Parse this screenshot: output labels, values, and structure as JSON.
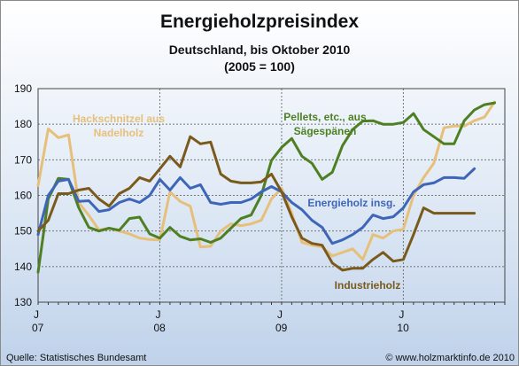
{
  "chart_data": {
    "type": "line",
    "title": "Energieholzpreisindex",
    "subtitle": "Deutschland, bis Oktober 2010",
    "subtitle2": "(2005 = 100)",
    "source_left": "Quelle:  Statistisches Bundesamt",
    "source_right": "© www.holzmarktinfo.de 2010",
    "ylim": [
      130,
      190
    ],
    "yticks": [
      130,
      140,
      150,
      160,
      170,
      180,
      190
    ],
    "xlim": [
      0,
      46
    ],
    "xticks": [
      {
        "x": 0,
        "month": "J",
        "year": "07"
      },
      {
        "x": 12,
        "month": "J",
        "year": "08"
      },
      {
        "x": 24,
        "month": "J",
        "year": "09"
      },
      {
        "x": 36,
        "month": "J",
        "year": "10"
      }
    ],
    "grid": true,
    "colors": {
      "hack": "#e6c07a",
      "pellets": "#4e7f23",
      "energie": "#3e66b8",
      "industrie": "#7a5a1c",
      "grid": "#777777",
      "frame_border": "#8a8a8a"
    },
    "series": [
      {
        "key": "hack",
        "name": "Hackschnitzel aus Nadelholz",
        "label_lines": [
          "Hackschnitzel aus",
          "Nadelholz"
        ],
        "x": [
          0,
          1,
          2,
          3,
          4,
          5,
          6,
          7,
          8,
          9,
          10,
          11,
          12,
          13,
          14,
          15,
          16,
          17,
          18,
          19,
          20,
          21,
          22,
          23,
          24,
          25,
          26,
          27,
          28,
          29,
          30,
          31,
          32,
          33,
          34,
          35,
          36,
          37,
          38,
          39,
          40,
          41,
          42,
          43,
          44,
          45
        ],
        "values": [
          162.8,
          178.7,
          176.2,
          177.0,
          158.0,
          154.4,
          150.3,
          150.8,
          150.0,
          149.2,
          148.0,
          147.6,
          147.5,
          161.0,
          158.3,
          157.0,
          145.5,
          145.7,
          150.0,
          152.0,
          151.5,
          152.0,
          153.0,
          159.0,
          162.0,
          155.0,
          146.8,
          146.0,
          145.5,
          143.0,
          144.0,
          145.0,
          142.0,
          149.0,
          148.0,
          150.0,
          150.5,
          160.0,
          165.0,
          169.0,
          179.0,
          179.5,
          179.5,
          181.0,
          182.0,
          186.3
        ]
      },
      {
        "key": "pellets",
        "name": "Pellets, etc., aus Sägespänen",
        "label_lines": [
          "Pellets, etc., aus",
          "Sägespänen"
        ],
        "x": [
          0,
          1,
          2,
          3,
          4,
          5,
          6,
          7,
          8,
          9,
          10,
          11,
          12,
          13,
          14,
          15,
          16,
          17,
          18,
          19,
          20,
          21,
          22,
          23,
          24,
          25,
          26,
          27,
          28,
          29,
          30,
          31,
          32,
          33,
          34,
          35,
          36,
          37,
          38,
          39,
          40,
          41,
          42,
          43,
          44,
          45
        ],
        "values": [
          138.4,
          159.0,
          164.8,
          164.5,
          156.6,
          151.0,
          150.0,
          150.8,
          150.2,
          153.5,
          153.9,
          149.2,
          148.0,
          151.0,
          148.5,
          147.5,
          147.8,
          146.8,
          148.0,
          150.8,
          153.5,
          154.5,
          160.0,
          169.8,
          173.5,
          176.0,
          171.0,
          169.0,
          164.5,
          166.5,
          174.0,
          178.5,
          180.9,
          181.0,
          180.0,
          180.0,
          180.5,
          183.0,
          178.5,
          176.5,
          174.5,
          174.5,
          181.0,
          184.0,
          185.5,
          186.0
        ]
      },
      {
        "key": "energie",
        "name": "Energieholz insg.",
        "label_lines": [
          "Energieholz insg."
        ],
        "x": [
          0,
          1,
          2,
          3,
          4,
          5,
          6,
          7,
          8,
          9,
          10,
          11,
          12,
          13,
          14,
          15,
          16,
          17,
          18,
          19,
          20,
          21,
          22,
          23,
          24,
          25,
          26,
          27,
          28,
          29,
          30,
          31,
          32,
          33,
          34,
          35,
          36,
          37,
          38,
          39,
          40,
          41,
          42,
          43
        ],
        "values": [
          149.0,
          160.0,
          164.0,
          164.5,
          158.3,
          158.5,
          155.5,
          156.0,
          158.0,
          159.0,
          158.0,
          160.0,
          164.5,
          161.5,
          165.0,
          162.0,
          163.0,
          158.0,
          157.5,
          158.0,
          158.0,
          159.0,
          161.0,
          162.5,
          161.0,
          158.0,
          156.0,
          153.0,
          151.0,
          146.5,
          147.5,
          149.0,
          151.0,
          154.5,
          153.5,
          154.0,
          156.5,
          161.0,
          163.0,
          163.5,
          165.0,
          165.0,
          164.8,
          167.5
        ]
      },
      {
        "key": "industrie",
        "name": "Industrieholz",
        "label_lines": [
          "Industrieholz"
        ],
        "x": [
          0,
          1,
          2,
          3,
          4,
          5,
          6,
          7,
          8,
          9,
          10,
          11,
          12,
          13,
          14,
          15,
          16,
          17,
          18,
          19,
          20,
          21,
          22,
          23,
          24,
          25,
          26,
          27,
          28,
          29,
          30,
          31,
          32,
          33,
          34,
          35,
          36,
          37,
          38,
          39,
          40,
          41,
          42,
          43
        ],
        "values": [
          150.0,
          153.0,
          160.5,
          160.5,
          161.5,
          162.0,
          159.0,
          157.0,
          160.5,
          162.0,
          165.0,
          164.0,
          167.5,
          171.0,
          168.0,
          176.5,
          174.5,
          175.0,
          166.0,
          164.0,
          163.5,
          163.5,
          163.8,
          166.0,
          161.0,
          154.0,
          148.0,
          146.5,
          146.0,
          141.0,
          139.0,
          139.5,
          139.5,
          142.0,
          144.0,
          141.5,
          142.0,
          149.0,
          156.5,
          155.0,
          155.0,
          155.0,
          155.0,
          155.0
        ]
      }
    ]
  }
}
